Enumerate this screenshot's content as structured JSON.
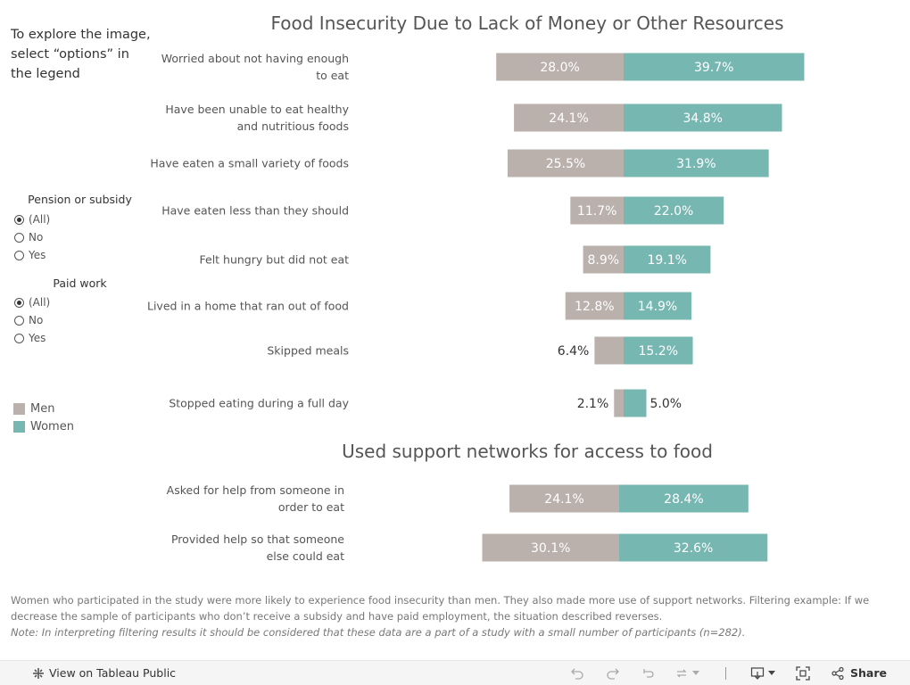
{
  "intro": {
    "line1": "To explore the image,",
    "line2": "select “options” in",
    "line3": "the legend"
  },
  "filters": {
    "pension": {
      "title": "Pension or subsidy",
      "options": [
        "(All)",
        "No",
        "Yes"
      ],
      "selected": "(All)"
    },
    "paid_work": {
      "title": "Paid work",
      "options": [
        "(All)",
        "No",
        "Yes"
      ],
      "selected": "(All)"
    }
  },
  "legend": {
    "items": [
      {
        "label": "Men",
        "color": "#bab0ac"
      },
      {
        "label": "Women",
        "color": "#76b7b2"
      }
    ]
  },
  "chart_data": [
    {
      "type": "bar",
      "orientation": "diverging-horizontal",
      "title": "Food Insecurity Due to Lack of Money or Other Resources",
      "categories": [
        "Worried about not having enough to eat",
        "Have been unable to eat healthy and nutritious foods",
        "Have eaten a small variety of foods",
        "Have eaten less than they should",
        "Felt hungry but did not eat",
        "Lived in a home that ran out of food",
        "Skipped meals",
        "Stopped eating during a full day"
      ],
      "category_lines": [
        [
          "Worried about not having enough",
          "to eat"
        ],
        [
          "Have been unable to eat healthy",
          "and nutritious foods"
        ],
        [
          "Have eaten a small variety of foods"
        ],
        [
          "Have eaten less than they should"
        ],
        [
          "Felt hungry but did not eat"
        ],
        [
          "Lived in a home that ran out of food"
        ],
        [
          "Skipped meals"
        ],
        [
          "Stopped eating during a full day"
        ]
      ],
      "series": [
        {
          "name": "Men",
          "color": "#bab0ac",
          "values": [
            28.0,
            24.1,
            25.5,
            11.7,
            8.9,
            12.8,
            6.4,
            2.1
          ],
          "labels": [
            "28.0%",
            "24.1%",
            "25.5%",
            "11.7%",
            "8.9%",
            "12.8%",
            "6.4%",
            "2.1%"
          ]
        },
        {
          "name": "Women",
          "color": "#76b7b2",
          "values": [
            39.7,
            34.8,
            31.9,
            22.0,
            19.1,
            14.9,
            15.2,
            5.0
          ],
          "labels": [
            "39.7%",
            "34.8%",
            "31.9%",
            "22.0%",
            "19.1%",
            "14.9%",
            "15.2%",
            "5.0%"
          ]
        }
      ],
      "unit": "%"
    },
    {
      "type": "bar",
      "orientation": "diverging-horizontal",
      "title": "Used support networks for access to food",
      "categories": [
        "Asked for help from someone in order to eat",
        "Provided help so that someone else could eat"
      ],
      "category_lines": [
        [
          "Asked for help from someone in",
          "order to eat"
        ],
        [
          "Provided help so that someone",
          "else could eat"
        ]
      ],
      "series": [
        {
          "name": "Men",
          "color": "#bab0ac",
          "values": [
            24.1,
            30.1
          ],
          "labels": [
            "24.1%",
            "30.1%"
          ]
        },
        {
          "name": "Women",
          "color": "#76b7b2",
          "values": [
            28.4,
            32.6
          ],
          "labels": [
            "28.4%",
            "32.6%"
          ]
        }
      ],
      "unit": "%"
    }
  ],
  "footer": {
    "description": "Women who participated in the study were more likely to experience food insecurity than men. They also made more use of support networks. Filtering example: If we decrease the sample of participants who don’t receive a subsidy and have paid employment, the situation described reverses.",
    "note": "Note: In interpreting filtering results it should be considered that these data are a part of a study with a small number of participants (n=282)."
  },
  "toolbar": {
    "view_label": "View on Tableau Public",
    "share_label": "Share"
  }
}
